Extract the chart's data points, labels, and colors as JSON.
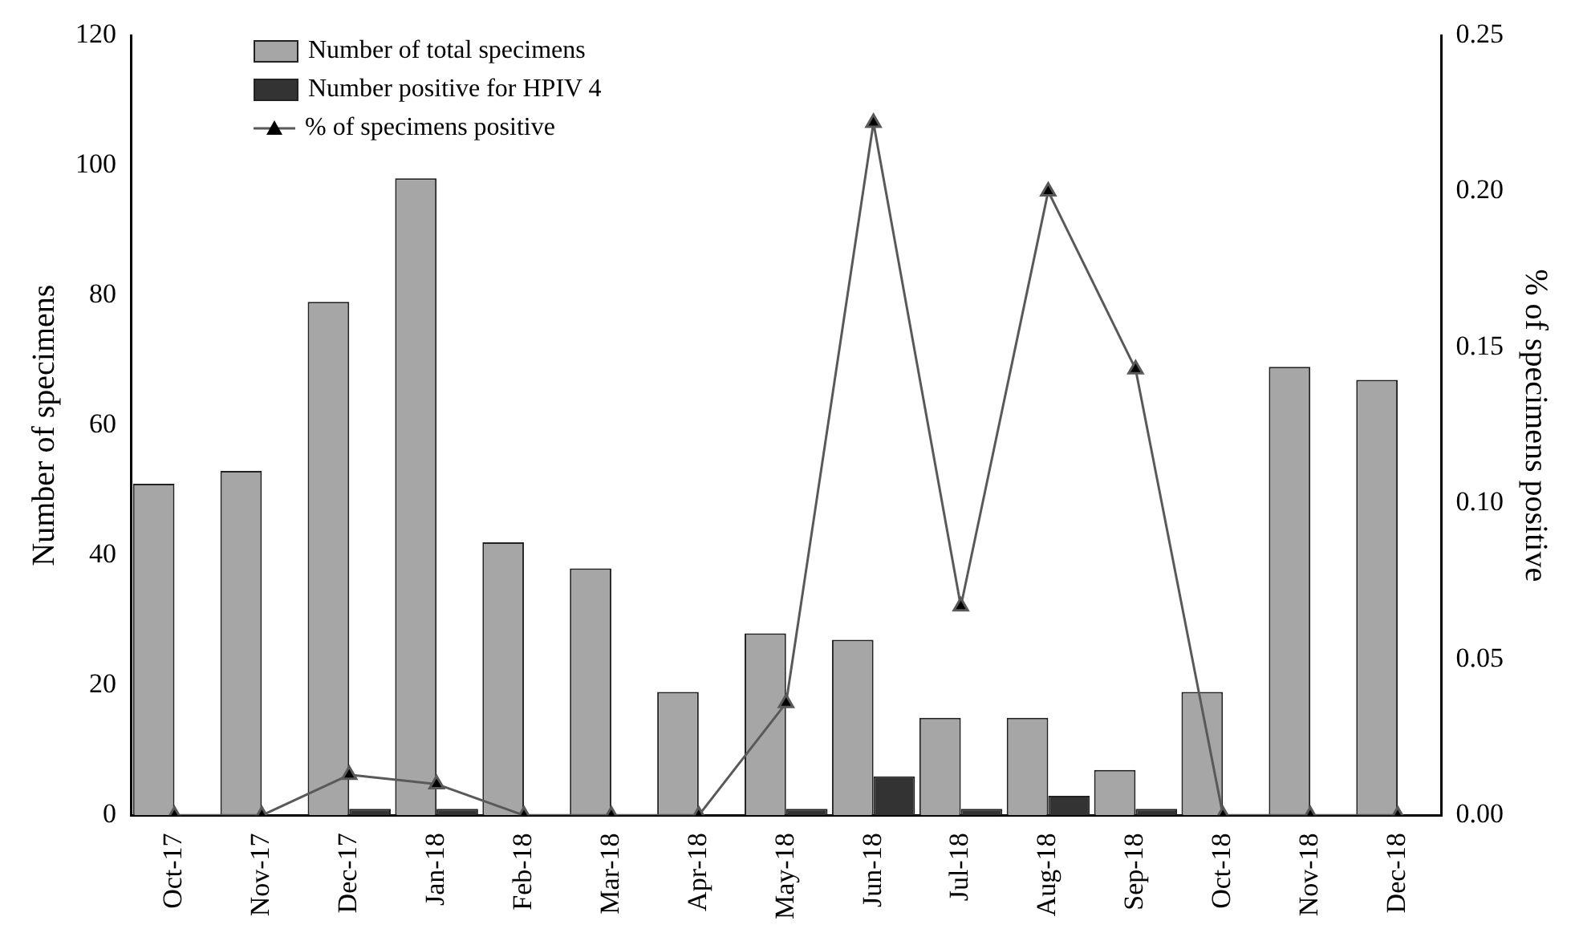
{
  "chart_data": {
    "type": "bar",
    "ylabel": "Number of specimens",
    "y2label": "% of specimens positive",
    "categories": [
      "Oct-17",
      "Nov-17",
      "Dec-17",
      "Jan-18",
      "Feb-18",
      "Mar-18",
      "Apr-18",
      "May-18",
      "Jun-18",
      "Jul-18",
      "Aug-18",
      "Sep-18",
      "Oct-18",
      "Nov-18",
      "Dec-18"
    ],
    "series": [
      {
        "name": "Number of total specimens",
        "color": "#a6a6a6",
        "values": [
          51,
          53,
          79,
          98,
          42,
          38,
          19,
          28,
          27,
          15,
          15,
          7,
          19,
          69,
          67
        ]
      },
      {
        "name": "Number positive for HPIV 4",
        "color": "#333333",
        "values": [
          0,
          0,
          1,
          1,
          0,
          0,
          0,
          1,
          6,
          1,
          3,
          1,
          0,
          0,
          0
        ]
      },
      {
        "name": "% of specimens positive",
        "type": "line",
        "axis": "y2",
        "color": "#595959",
        "marker": "triangle",
        "values": [
          0,
          0,
          0.013,
          0.01,
          0,
          0,
          0,
          0.036,
          0.222,
          0.067,
          0.2,
          0.143,
          0,
          0,
          0
        ]
      }
    ],
    "ylim": [
      0,
      120
    ],
    "yticks": [
      0,
      20,
      40,
      60,
      80,
      100,
      120
    ],
    "y2lim": [
      0,
      0.25
    ],
    "y2ticks": [
      {
        "value": 0,
        "label": "0.00"
      },
      {
        "value": 0.05,
        "label": "0.05"
      },
      {
        "value": 0.1,
        "label": "0.10"
      },
      {
        "value": 0.15,
        "label": "0.15"
      },
      {
        "value": 0.2,
        "label": "0.20"
      },
      {
        "value": 0.25,
        "label": "0.25"
      }
    ],
    "grid": false,
    "legend": "top left"
  }
}
